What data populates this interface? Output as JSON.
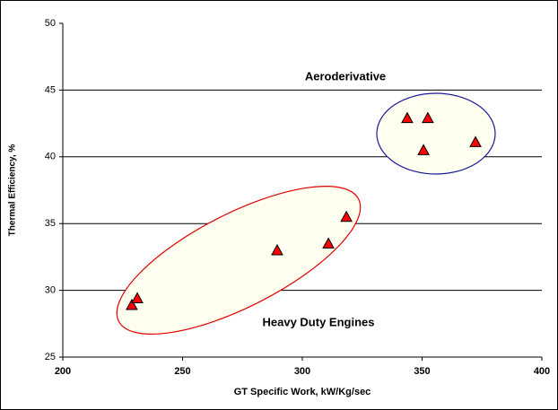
{
  "chart_data": {
    "type": "scatter",
    "xlabel": "GT Specific Work, kW/Kg/sec",
    "ylabel": "Thermal Efficiency, %",
    "annotations": [
      "Aeroderivative",
      "Heavy Duty Engines"
    ],
    "x": [
      228.8,
      231.1,
      289.5,
      310.9,
      318.4,
      343.8,
      352.4,
      350.6,
      372.3
    ],
    "series": [
      {
        "color": "#ff0000",
        "values": [
          28.9,
          29.4,
          33.0,
          33.5,
          35.5,
          42.9,
          42.9,
          40.5,
          41.1
        ]
      }
    ],
    "xlim": [
      200,
      400
    ],
    "xticks": [
      200,
      250,
      300,
      350,
      400
    ],
    "ylim": [
      25,
      50
    ],
    "yticks": [
      25,
      30,
      35,
      40,
      45,
      50
    ],
    "grid": true
  }
}
